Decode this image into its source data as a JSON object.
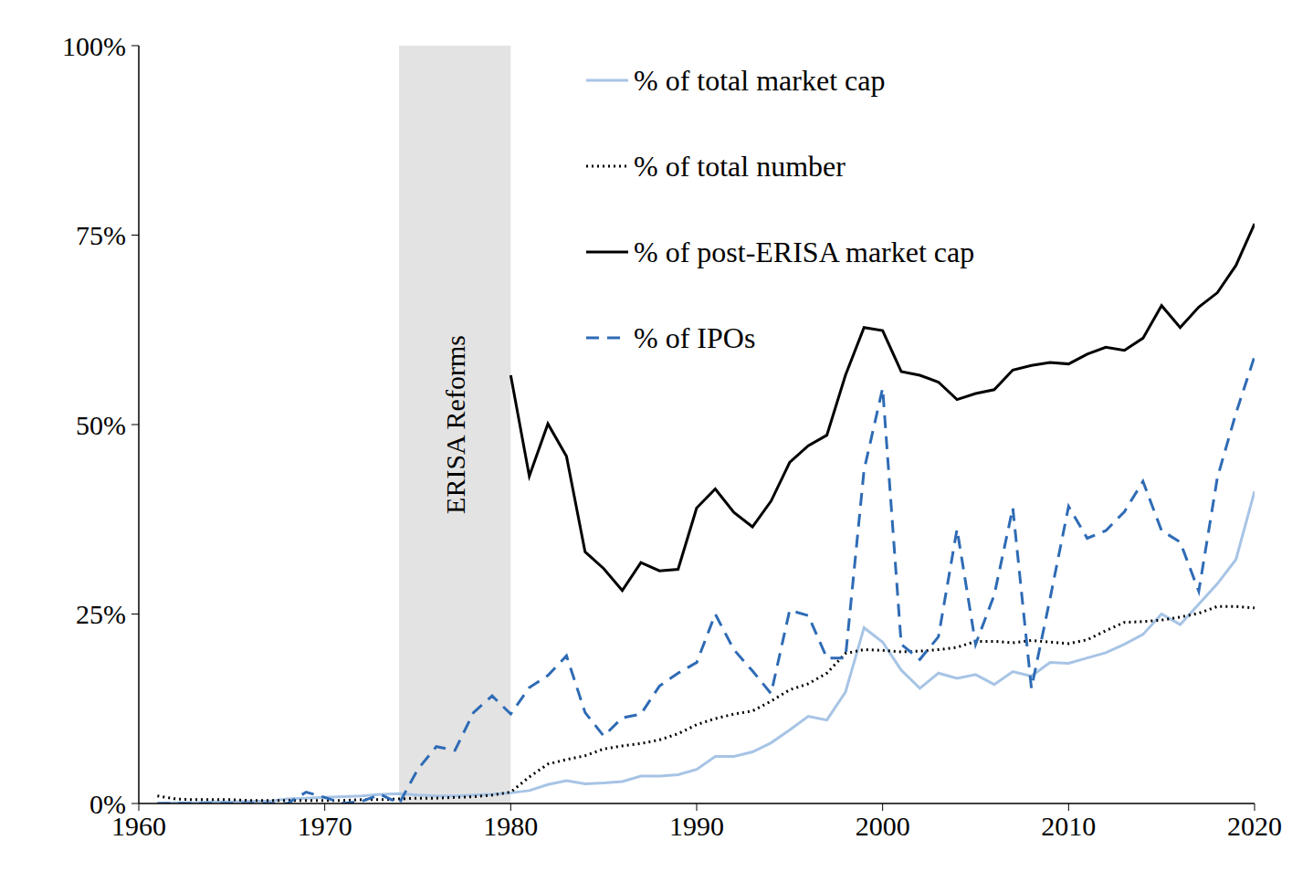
{
  "chart_data": {
    "type": "line",
    "x": [
      1961,
      1962,
      1963,
      1964,
      1965,
      1966,
      1967,
      1968,
      1969,
      1970,
      1971,
      1972,
      1973,
      1974,
      1975,
      1976,
      1977,
      1978,
      1979,
      1980,
      1981,
      1982,
      1983,
      1984,
      1985,
      1986,
      1987,
      1988,
      1989,
      1990,
      1991,
      1992,
      1993,
      1994,
      1995,
      1996,
      1997,
      1998,
      1999,
      2000,
      2001,
      2002,
      2003,
      2004,
      2005,
      2006,
      2007,
      2008,
      2009,
      2010,
      2011,
      2012,
      2013,
      2014,
      2015,
      2016,
      2017,
      2018,
      2019,
      2020
    ],
    "series": [
      {
        "name": "% of total market cap",
        "color": "#a7c4e5",
        "line_style": "solid",
        "values": [
          0,
          0.1,
          0.1,
          0.2,
          0.2,
          0.3,
          0.3,
          0.6,
          0.7,
          0.8,
          0.9,
          1.0,
          1.2,
          1.3,
          1.1,
          1.0,
          1.0,
          1.1,
          1.2,
          1.4,
          1.7,
          2.5,
          3.0,
          2.6,
          2.7,
          2.9,
          3.6,
          3.6,
          3.8,
          4.5,
          6.2,
          6.2,
          6.8,
          8.0,
          9.7,
          11.5,
          11.0,
          14.7,
          23.2,
          21.3,
          17.6,
          15.2,
          17.2,
          16.5,
          17.0,
          15.7,
          17.4,
          16.8,
          18.6,
          18.5,
          19.2,
          19.9,
          21.0,
          22.3,
          25.0,
          23.6,
          26.3,
          29.0,
          32.2,
          41.2
        ]
      },
      {
        "name": "% of total number",
        "color": "#000000",
        "line_style": "dotted",
        "values": [
          1.0,
          0.6,
          0.5,
          0.5,
          0.5,
          0.4,
          0.4,
          0.4,
          0.4,
          0.4,
          0.4,
          0.5,
          0.5,
          0.6,
          0.7,
          0.7,
          0.8,
          0.9,
          1.1,
          1.5,
          3.5,
          5.2,
          5.8,
          6.3,
          7.2,
          7.6,
          7.9,
          8.4,
          9.2,
          10.4,
          11.2,
          11.8,
          12.2,
          13.5,
          15.0,
          15.8,
          17.2,
          19.8,
          20.3,
          20.2,
          20.0,
          20.1,
          20.3,
          20.6,
          21.4,
          21.4,
          21.2,
          21.5,
          21.3,
          21.1,
          21.6,
          22.8,
          23.9,
          24.0,
          24.2,
          24.6,
          25.1,
          26.0,
          26.0,
          25.8
        ]
      },
      {
        "name": "% of post-ERISA market cap",
        "color": "#000000",
        "line_style": "solid",
        "values": [
          null,
          null,
          null,
          null,
          null,
          null,
          null,
          null,
          null,
          null,
          null,
          null,
          null,
          null,
          null,
          null,
          null,
          null,
          null,
          56.5,
          43.2,
          50.1,
          45.8,
          33.2,
          31.0,
          28.1,
          31.8,
          30.7,
          30.9,
          39.0,
          41.5,
          38.4,
          36.5,
          39.9,
          45.0,
          47.2,
          48.6,
          56.5,
          62.8,
          62.4,
          57.0,
          56.5,
          55.6,
          53.3,
          54.1,
          54.6,
          57.2,
          57.8,
          58.2,
          58.0,
          59.3,
          60.2,
          59.8,
          61.4,
          65.7,
          62.8,
          65.5,
          67.4,
          71.0,
          76.5
        ]
      },
      {
        "name": "% of IPOs",
        "color": "#2e6bb5",
        "line_style": "dashed",
        "values": [
          0,
          0,
          0,
          0,
          0,
          0,
          0,
          0,
          1.5,
          0.8,
          0,
          0.3,
          1.2,
          0,
          4.5,
          7.5,
          7.0,
          12.0,
          14.2,
          11.8,
          15.3,
          16.9,
          19.5,
          12.0,
          8.9,
          11.3,
          11.8,
          15.5,
          17.2,
          18.6,
          25.0,
          20.3,
          17.5,
          14.5,
          25.5,
          24.8,
          19.2,
          19.2,
          44.0,
          54.8,
          21.0,
          19.0,
          22.0,
          36.2,
          21.0,
          27.5,
          39.0,
          15.2,
          27.0,
          39.2,
          35.0,
          36.0,
          38.5,
          42.5,
          36.0,
          34.5,
          28.0,
          43.0,
          51.5,
          59.0
        ]
      }
    ],
    "xlim": [
      1960,
      2020
    ],
    "xticks": [
      1960,
      1970,
      1980,
      1990,
      2000,
      2010,
      2020
    ],
    "ylim": [
      0,
      100
    ],
    "yticks": [
      {
        "value": 0,
        "label": "0%"
      },
      {
        "value": 25,
        "label": "25%"
      },
      {
        "value": 50,
        "label": "50%"
      },
      {
        "value": 75,
        "label": "75%"
      },
      {
        "value": 100,
        "label": "100%"
      }
    ],
    "annotations": [
      {
        "type": "span",
        "x0": 1974,
        "x1": 1980,
        "y0": 0,
        "y1": 100,
        "text": "ERISA Reforms"
      }
    ],
    "legend": "top",
    "grid": false
  }
}
